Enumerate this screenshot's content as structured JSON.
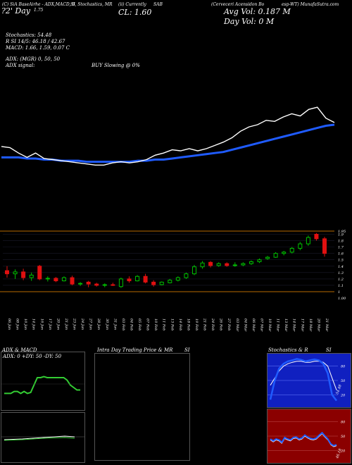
{
  "header": {
    "line1_left": "(C) SiA BaseAirhe - ADX,MACD, B",
    "line1_mid": "SI, Stochastics, MR",
    "line1_mid2": "(ii) Currently",
    "line1_sym": "SAB",
    "line1_right": "(Cerveceri Acensidon Bo",
    "line1_far": "esp-WT) MunafaSutra.com",
    "line2_left": "?2' Day",
    "line2_left_val": "1.75",
    "close_label": "CL: 1.60",
    "avg_vol": "Avg Vol: 0.187 M",
    "day_vol": "Day Vol: 0  M",
    "stoch": "Stochastics: 54.48",
    "rsi": "R         SI 14/5: 46.18 / 42.67",
    "macd": "MACD: 1.66, 1.59, 0.07 C",
    "adx": "ADX:                                      (MGR) 0, 50, 50",
    "adx_signal": "ADX  signal:",
    "buy_slowing": "BUY Slowing @ 0%"
  },
  "colors": {
    "up": "#00c000",
    "down": "#e01010",
    "ma": "#1f5bff",
    "price": "#ffffff",
    "level": "#b86a00",
    "adx_line": "#33cc33",
    "stoch_bg": "#1020c0",
    "rsi_bg": "#8b0000"
  },
  "chart_data": {
    "type": "candlestick",
    "price_scale_ticks": [
      "1.95",
      "1.9",
      "1.8",
      "1.7",
      "1.6",
      "1.5",
      "1.4",
      "1.3",
      "1.2",
      "1.1",
      "1",
      "1.00"
    ],
    "dates": [
      "06 Jan",
      "08 Jan",
      "10 Jan",
      "14 Jan",
      "16 Jan",
      "17 Jan",
      "20 Jan",
      "21 Jan",
      "23 Jan",
      "24 Jan",
      "27 Jan",
      "28 Jan",
      "30 Jan",
      "31 Jan",
      "03 Feb",
      "04 Feb",
      "05 Feb",
      "07 Feb",
      "10 Feb",
      "11 Feb",
      "13 Feb",
      "14 Feb",
      "18 Feb",
      "19 Feb",
      "21 Feb",
      "24 Feb",
      "26 Feb",
      "27 Feb",
      "03 Mar",
      "04 Mar",
      "06 Mar",
      "07 Mar",
      "10 Mar",
      "11 Mar",
      "13 Mar",
      "14 Mar",
      "17 Mar",
      "18 Mar",
      "20 Mar",
      "21 Mar"
    ],
    "candles": [
      {
        "o": 1.33,
        "h": 1.4,
        "l": 1.22,
        "c": 1.28
      },
      {
        "o": 1.28,
        "h": 1.35,
        "l": 1.2,
        "c": 1.31
      },
      {
        "o": 1.31,
        "h": 1.36,
        "l": 1.18,
        "c": 1.22
      },
      {
        "o": 1.22,
        "h": 1.3,
        "l": 1.17,
        "c": 1.26
      },
      {
        "o": 1.4,
        "h": 1.42,
        "l": 1.18,
        "c": 1.2
      },
      {
        "o": 1.2,
        "h": 1.24,
        "l": 1.16,
        "c": 1.21
      },
      {
        "o": 1.21,
        "h": 1.23,
        "l": 1.15,
        "c": 1.17
      },
      {
        "o": 1.17,
        "h": 1.24,
        "l": 1.16,
        "c": 1.22
      },
      {
        "o": 1.22,
        "h": 1.25,
        "l": 1.1,
        "c": 1.12
      },
      {
        "o": 1.12,
        "h": 1.15,
        "l": 1.09,
        "c": 1.13
      },
      {
        "o": 1.15,
        "h": 1.17,
        "l": 1.07,
        "c": 1.12
      },
      {
        "o": 1.12,
        "h": 1.14,
        "l": 1.08,
        "c": 1.1
      },
      {
        "o": 1.1,
        "h": 1.13,
        "l": 1.07,
        "c": 1.11
      },
      {
        "o": 1.11,
        "h": 1.14,
        "l": 1.09,
        "c": 1.1
      },
      {
        "o": 1.08,
        "h": 1.22,
        "l": 1.06,
        "c": 1.2
      },
      {
        "o": 1.2,
        "h": 1.24,
        "l": 1.14,
        "c": 1.17
      },
      {
        "o": 1.17,
        "h": 1.26,
        "l": 1.16,
        "c": 1.24
      },
      {
        "o": 1.24,
        "h": 1.28,
        "l": 1.13,
        "c": 1.15
      },
      {
        "o": 1.15,
        "h": 1.18,
        "l": 1.08,
        "c": 1.11
      },
      {
        "o": 1.11,
        "h": 1.16,
        "l": 1.1,
        "c": 1.15
      },
      {
        "o": 1.14,
        "h": 1.2,
        "l": 1.13,
        "c": 1.18
      },
      {
        "o": 1.18,
        "h": 1.24,
        "l": 1.16,
        "c": 1.22
      },
      {
        "o": 1.22,
        "h": 1.3,
        "l": 1.2,
        "c": 1.28
      },
      {
        "o": 1.28,
        "h": 1.42,
        "l": 1.26,
        "c": 1.39
      },
      {
        "o": 1.39,
        "h": 1.48,
        "l": 1.36,
        "c": 1.45
      },
      {
        "o": 1.46,
        "h": 1.48,
        "l": 1.38,
        "c": 1.41
      },
      {
        "o": 1.41,
        "h": 1.46,
        "l": 1.39,
        "c": 1.44
      },
      {
        "o": 1.44,
        "h": 1.46,
        "l": 1.39,
        "c": 1.41
      },
      {
        "o": 1.41,
        "h": 1.46,
        "l": 1.39,
        "c": 1.42
      },
      {
        "o": 1.42,
        "h": 1.46,
        "l": 1.4,
        "c": 1.44
      },
      {
        "o": 1.44,
        "h": 1.49,
        "l": 1.42,
        "c": 1.47
      },
      {
        "o": 1.47,
        "h": 1.52,
        "l": 1.45,
        "c": 1.5
      },
      {
        "o": 1.52,
        "h": 1.56,
        "l": 1.5,
        "c": 1.54
      },
      {
        "o": 1.54,
        "h": 1.62,
        "l": 1.53,
        "c": 1.6
      },
      {
        "o": 1.6,
        "h": 1.64,
        "l": 1.57,
        "c": 1.62
      },
      {
        "o": 1.62,
        "h": 1.7,
        "l": 1.6,
        "c": 1.68
      },
      {
        "o": 1.68,
        "h": 1.78,
        "l": 1.65,
        "c": 1.75
      },
      {
        "o": 1.75,
        "h": 1.88,
        "l": 1.72,
        "c": 1.85
      },
      {
        "o": 1.9,
        "h": 1.92,
        "l": 1.8,
        "c": 1.83
      },
      {
        "o": 1.83,
        "h": 1.86,
        "l": 1.55,
        "c": 1.6
      }
    ],
    "levels": [
      1.95,
      1.0
    ],
    "price_line": [
      1.62,
      1.61,
      1.56,
      1.52,
      1.56,
      1.51,
      1.5,
      1.49,
      1.48,
      1.47,
      1.46,
      1.45,
      1.45,
      1.47,
      1.48,
      1.47,
      1.48,
      1.5,
      1.54,
      1.56,
      1.59,
      1.58,
      1.6,
      1.58,
      1.6,
      1.63,
      1.66,
      1.7,
      1.76,
      1.8,
      1.82,
      1.86,
      1.85,
      1.89,
      1.92,
      1.9,
      1.96,
      1.98,
      1.88,
      1.84
    ],
    "ma_line": [
      1.52,
      1.52,
      1.52,
      1.51,
      1.51,
      1.5,
      1.5,
      1.49,
      1.49,
      1.49,
      1.48,
      1.48,
      1.48,
      1.48,
      1.48,
      1.48,
      1.49,
      1.49,
      1.5,
      1.5,
      1.51,
      1.52,
      1.53,
      1.54,
      1.55,
      1.56,
      1.57,
      1.59,
      1.61,
      1.63,
      1.65,
      1.67,
      1.69,
      1.71,
      1.73,
      1.75,
      1.77,
      1.79,
      1.81,
      1.82
    ]
  },
  "panels": {
    "adx_title": "ADX  & MACD",
    "adx_sub": "ADX: 0  +DY: 50  -DY: 50",
    "intraday_title": "Intra  Day Trading Price  & MR",
    "intraday_title2": "SI",
    "stoch_title": "Stochastics & R",
    "stoch_title2": "SI",
    "stoch_ticks": [
      "80",
      "50",
      "20"
    ],
    "stoch_value": "54.48",
    "rsi_ticks": [
      "80",
      "50",
      "20"
    ],
    "rsi_value": "46.18",
    "adx_line": [
      0.28,
      0.28,
      0.28,
      0.32,
      0.32,
      0.28,
      0.32,
      0.28,
      0.3,
      0.45,
      0.6,
      0.6,
      0.62,
      0.6,
      0.6,
      0.6,
      0.6,
      0.6,
      0.6,
      0.55,
      0.45,
      0.4,
      0.35,
      0.35
    ],
    "stoch_k": [
      0.1,
      0.5,
      0.75,
      0.85,
      0.9,
      0.92,
      0.95,
      0.93,
      0.9,
      0.92,
      0.94,
      0.92,
      0.85,
      0.65,
      0.2,
      0.08
    ],
    "stoch_d": [
      0.4,
      0.55,
      0.7,
      0.8,
      0.85,
      0.88,
      0.9,
      0.9,
      0.88,
      0.88,
      0.9,
      0.9,
      0.88,
      0.8,
      0.55,
      0.3
    ],
    "rsi_line": [
      0.42,
      0.38,
      0.42,
      0.4,
      0.35,
      0.45,
      0.42,
      0.4,
      0.45,
      0.46,
      0.42,
      0.44,
      0.5,
      0.46,
      0.43,
      0.42,
      0.44,
      0.5,
      0.55,
      0.48,
      0.42,
      0.32,
      0.28,
      0.3
    ]
  }
}
